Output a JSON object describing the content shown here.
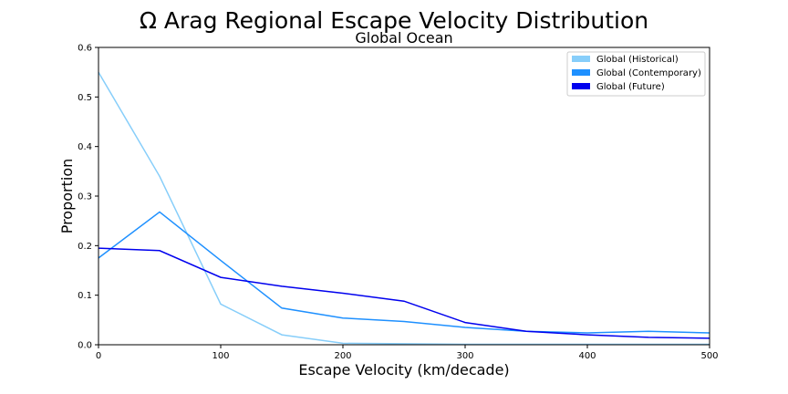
{
  "chart_data": {
    "type": "line",
    "title": "Ω Arag Regional Escape Velocity Distribution",
    "subtitle": "Global Ocean",
    "xlabel": "Escape Velocity (km/decade)",
    "ylabel": "Proportion",
    "xlim": [
      0,
      500
    ],
    "ylim": [
      0,
      0.6
    ],
    "xticks": [
      "0",
      "100",
      "200",
      "300",
      "400",
      "500"
    ],
    "yticks": [
      "0.0",
      "0.1",
      "0.2",
      "0.3",
      "0.4",
      "0.5",
      "0.6"
    ],
    "grid": false,
    "legend_position": "top-right",
    "x": [
      0,
      50,
      100,
      150,
      200,
      250,
      300,
      350,
      400,
      450,
      500
    ],
    "series": [
      {
        "name": "Global (Historical)",
        "color": "#87CEFA",
        "values": [
          0.55,
          0.34,
          0.082,
          0.02,
          0.003,
          0.002,
          0.001,
          0.001,
          0.001,
          0.001,
          0.001
        ]
      },
      {
        "name": "Global (Contemporary)",
        "color": "#1E90FF",
        "values": [
          0.175,
          0.268,
          0.17,
          0.074,
          0.054,
          0.047,
          0.035,
          0.027,
          0.024,
          0.027,
          0.024
        ]
      },
      {
        "name": "Global (Future)",
        "color": "#0000EE",
        "values": [
          0.195,
          0.19,
          0.136,
          0.118,
          0.104,
          0.088,
          0.045,
          0.027,
          0.02,
          0.015,
          0.013
        ]
      }
    ]
  }
}
